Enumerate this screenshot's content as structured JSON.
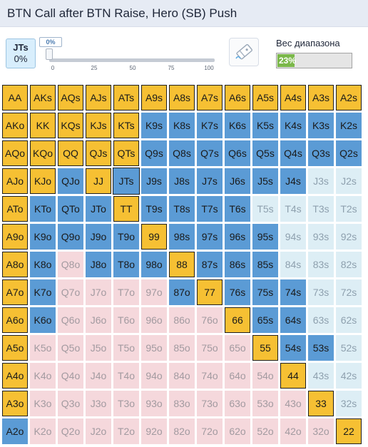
{
  "header": {
    "title": "BTN Call after BTN Raise, Hero (SB) Push"
  },
  "selected_hand": {
    "name": "JTs",
    "percent": "0%"
  },
  "slider": {
    "value_label": "0%",
    "ticks": [
      "0",
      "25",
      "50",
      "75",
      "100"
    ],
    "value": 0
  },
  "range_weight": {
    "title": "Вес диапазона",
    "label": "23%",
    "fraction": 0.23,
    "fill_color": "#7bb84a"
  },
  "icons": {
    "eraser": "eraser-icon"
  },
  "colors": {
    "push": "#f6c033",
    "call": "#5b9bd5",
    "fold_light": "#ddeef5",
    "fold_pink": "#f5d8dc"
  },
  "ranks": [
    "A",
    "K",
    "Q",
    "J",
    "T",
    "9",
    "8",
    "7",
    "6",
    "5",
    "4",
    "3",
    "2"
  ],
  "grid": {
    "rows": [
      [
        "AA",
        "AKs",
        "AQs",
        "AJs",
        "ATs",
        "A9s",
        "A8s",
        "A7s",
        "A6s",
        "A5s",
        "A4s",
        "A3s",
        "A2s"
      ],
      [
        "AKo",
        "KK",
        "KQs",
        "KJs",
        "KTs",
        "K9s",
        "K8s",
        "K7s",
        "K6s",
        "K5s",
        "K4s",
        "K3s",
        "K2s"
      ],
      [
        "AQo",
        "KQo",
        "QQ",
        "QJs",
        "QTs",
        "Q9s",
        "Q8s",
        "Q7s",
        "Q6s",
        "Q5s",
        "Q4s",
        "Q3s",
        "Q2s"
      ],
      [
        "AJo",
        "KJo",
        "QJo",
        "JJ",
        "JTs",
        "J9s",
        "J8s",
        "J7s",
        "J6s",
        "J5s",
        "J4s",
        "J3s",
        "J2s"
      ],
      [
        "ATo",
        "KTo",
        "QTo",
        "JTo",
        "TT",
        "T9s",
        "T8s",
        "T7s",
        "T6s",
        "T5s",
        "T4s",
        "T3s",
        "T2s"
      ],
      [
        "A9o",
        "K9o",
        "Q9o",
        "J9o",
        "T9o",
        "99",
        "98s",
        "97s",
        "96s",
        "95s",
        "94s",
        "93s",
        "92s"
      ],
      [
        "A8o",
        "K8o",
        "Q8o",
        "J8o",
        "T8o",
        "98o",
        "88",
        "87s",
        "86s",
        "85s",
        "84s",
        "83s",
        "82s"
      ],
      [
        "A7o",
        "K7o",
        "Q7o",
        "J7o",
        "T7o",
        "97o",
        "87o",
        "77",
        "76s",
        "75s",
        "74s",
        "73s",
        "72s"
      ],
      [
        "A6o",
        "K6o",
        "Q6o",
        "J6o",
        "T6o",
        "96o",
        "86o",
        "76o",
        "66",
        "65s",
        "64s",
        "63s",
        "62s"
      ],
      [
        "A5o",
        "K5o",
        "Q5o",
        "J5o",
        "T5o",
        "95o",
        "85o",
        "75o",
        "65o",
        "55",
        "54s",
        "53s",
        "52s"
      ],
      [
        "A4o",
        "K4o",
        "Q4o",
        "J4o",
        "T4o",
        "94o",
        "84o",
        "74o",
        "64o",
        "54o",
        "44",
        "43s",
        "42s"
      ],
      [
        "A3o",
        "K3o",
        "Q3o",
        "J3o",
        "T3o",
        "93o",
        "83o",
        "73o",
        "63o",
        "53o",
        "43o",
        "33",
        "32s"
      ],
      [
        "A2o",
        "K2o",
        "Q2o",
        "J2o",
        "T2o",
        "92o",
        "82o",
        "72o",
        "62o",
        "52o",
        "42o",
        "32o",
        "22"
      ]
    ],
    "states": [
      "PPPPPPPPPPPPP",
      "PPPPPCCCCCCCC",
      "PPPPPCCCCCCCC",
      "PPCPCCCCCCCLL",
      "PCCCPCCCCLLLL",
      "PCCCCPCCCCLLL",
      "PCRCCCPCCCLLL",
      "PCRRRRCPCCCLL",
      "PCRRRRRRPCCLL",
      "PRRRRRRRRPCCL",
      "PRRRRRRRRRPLL",
      "PRRRRRRRRRRPL",
      "CRRRRRRRRRRRP"
    ]
  }
}
